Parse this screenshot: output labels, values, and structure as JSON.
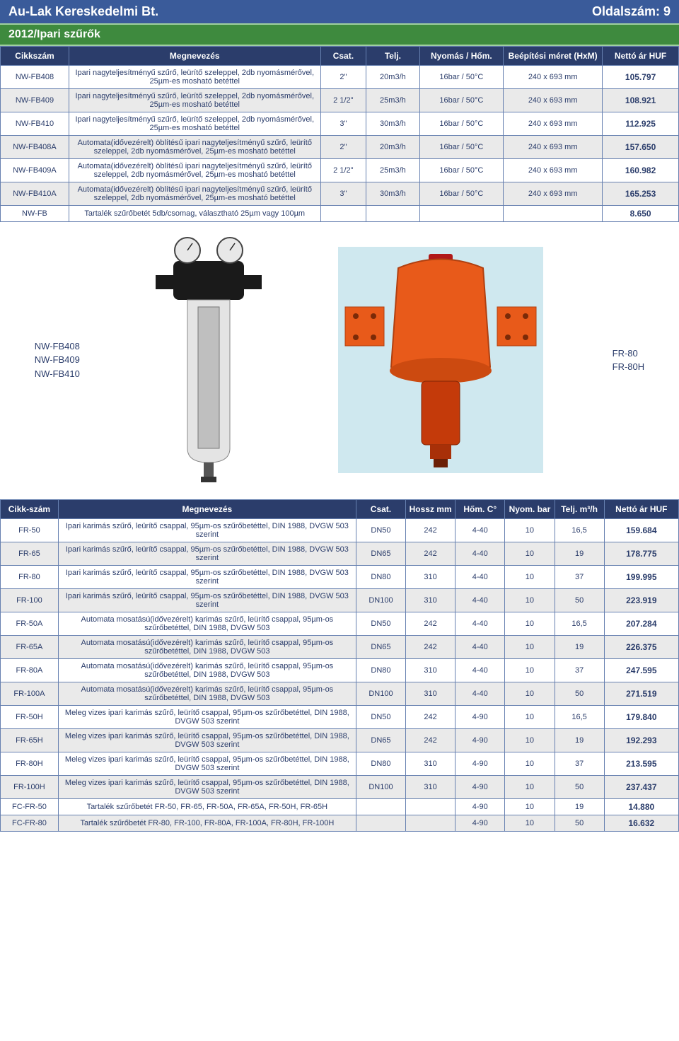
{
  "header": {
    "company": "Au-Lak Kereskedelmi Bt.",
    "page_label": "Oldalszám: 9",
    "subtitle": "2012/Ipari szűrők"
  },
  "colors": {
    "header_bg": "#3a5b9a",
    "subheader_bg": "#3e8a3e",
    "th_bg": "#2b3d6b",
    "border": "#6680b0",
    "row_alt": "#eaeaea",
    "text_blue": "#2b3d6b"
  },
  "table1": {
    "headers": {
      "code": "Cikkszám",
      "desc": "Megnevezés",
      "csat": "Csat.",
      "telj": "Telj.",
      "nyom": "Nyomás / Hőm.",
      "meret": "Beépítési méret (HxM)",
      "price": "Nettó ár HUF"
    },
    "rows": [
      {
        "code": "NW-FB408",
        "desc": "Ipari nagyteljesítményű szűrő, leürítő szeleppel, 2db nyomásmérővel, 25µm-es mosható betéttel",
        "csat": "2\"",
        "telj": "20m3/h",
        "nyom": "16bar / 50°C",
        "meret": "240 x 693 mm",
        "price": "105.797"
      },
      {
        "code": "NW-FB409",
        "desc": "Ipari nagyteljesítményű szűrő, leürítő szeleppel, 2db nyomásmérővel, 25µm-es mosható betéttel",
        "csat": "2 1/2\"",
        "telj": "25m3/h",
        "nyom": "16bar / 50°C",
        "meret": "240 x 693 mm",
        "price": "108.921"
      },
      {
        "code": "NW-FB410",
        "desc": "Ipari nagyteljesítményű szűrő, leürítő szeleppel, 2db nyomásmérővel, 25µm-es mosható betéttel",
        "csat": "3\"",
        "telj": "30m3/h",
        "nyom": "16bar / 50°C",
        "meret": "240 x 693 mm",
        "price": "112.925"
      },
      {
        "code": "NW-FB408A",
        "desc": "Automata(idővezérelt) öblítésű ipari nagyteljesítményű szűrő, leürítő szeleppel, 2db nyomásmérővel, 25µm-es mosható betéttel",
        "csat": "2\"",
        "telj": "20m3/h",
        "nyom": "16bar / 50°C",
        "meret": "240 x 693 mm",
        "price": "157.650"
      },
      {
        "code": "NW-FB409A",
        "desc": "Automata(idővezérelt) öblítésű ipari nagyteljesítményű szűrő, leürítő szeleppel, 2db nyomásmérővel, 25µm-es mosható betéttel",
        "csat": "2 1/2\"",
        "telj": "25m3/h",
        "nyom": "16bar / 50°C",
        "meret": "240 x 693 mm",
        "price": "160.982"
      },
      {
        "code": "NW-FB410A",
        "desc": "Automata(idővezérelt) öblítésű ipari nagyteljesítményű szűrő, leürítő szeleppel, 2db nyomásmérővel, 25µm-es mosható betéttel",
        "csat": "3\"",
        "telj": "30m3/h",
        "nyom": "16bar / 50°C",
        "meret": "240 x 693 mm",
        "price": "165.253"
      },
      {
        "code": "NW-FB",
        "desc": "Tartalék szűrőbetét 5db/csomag, választható 25µm vagy 100µm",
        "csat": "",
        "telj": "",
        "nyom": "",
        "meret": "",
        "price": "8.650"
      }
    ]
  },
  "images": {
    "left_labels": [
      "NW-FB408",
      "NW-FB409",
      "NW-FB410"
    ],
    "right_labels": [
      "FR-80",
      "FR-80H"
    ]
  },
  "table2": {
    "headers": {
      "code": "Cikk-szám",
      "desc": "Megnevezés",
      "csat": "Csat.",
      "hossz": "Hossz mm",
      "hom": "Hőm. C°",
      "nyom": "Nyom. bar",
      "telj": "Telj. m³/h",
      "price": "Nettó ár HUF"
    },
    "rows": [
      {
        "code": "FR-50",
        "desc": "Ipari karimás szűrő, leürítő csappal, 95µm-os szűrőbetéttel, DIN 1988, DVGW 503 szerint",
        "csat": "DN50",
        "hossz": "242",
        "hom": "4-40",
        "nyom": "10",
        "telj": "16,5",
        "price": "159.684"
      },
      {
        "code": "FR-65",
        "desc": "Ipari karimás szűrő, leürítő csappal, 95µm-os szűrőbetéttel, DIN 1988, DVGW 503 szerint",
        "csat": "DN65",
        "hossz": "242",
        "hom": "4-40",
        "nyom": "10",
        "telj": "19",
        "price": "178.775"
      },
      {
        "code": "FR-80",
        "desc": "Ipari karimás szűrő, leürítő csappal, 95µm-os szűrőbetéttel, DIN 1988, DVGW 503 szerint",
        "csat": "DN80",
        "hossz": "310",
        "hom": "4-40",
        "nyom": "10",
        "telj": "37",
        "price": "199.995"
      },
      {
        "code": "FR-100",
        "desc": "Ipari karimás szűrő, leürítő csappal, 95µm-os szűrőbetéttel, DIN 1988, DVGW 503 szerint",
        "csat": "DN100",
        "hossz": "310",
        "hom": "4-40",
        "nyom": "10",
        "telj": "50",
        "price": "223.919"
      },
      {
        "code": "FR-50A",
        "desc": "Automata mosatású(idővezérelt) karimás szűrő, leürítő csappal, 95µm-os szűrőbetéttel, DIN 1988, DVGW 503",
        "csat": "DN50",
        "hossz": "242",
        "hom": "4-40",
        "nyom": "10",
        "telj": "16,5",
        "price": "207.284"
      },
      {
        "code": "FR-65A",
        "desc": "Automata mosatású(idővezérelt) karimás szűrő, leürítő csappal, 95µm-os szűrőbetéttel, DIN 1988, DVGW 503",
        "csat": "DN65",
        "hossz": "242",
        "hom": "4-40",
        "nyom": "10",
        "telj": "19",
        "price": "226.375"
      },
      {
        "code": "FR-80A",
        "desc": "Automata mosatású(idővezérelt) karimás szűrő, leürítő csappal, 95µm-os szűrőbetéttel, DIN 1988, DVGW 503",
        "csat": "DN80",
        "hossz": "310",
        "hom": "4-40",
        "nyom": "10",
        "telj": "37",
        "price": "247.595"
      },
      {
        "code": "FR-100A",
        "desc": "Automata mosatású(idővezérelt) karimás szűrő, leürítő csappal, 95µm-os szűrőbetéttel, DIN 1988, DVGW 503",
        "csat": "DN100",
        "hossz": "310",
        "hom": "4-40",
        "nyom": "10",
        "telj": "50",
        "price": "271.519"
      },
      {
        "code": "FR-50H",
        "desc": "Meleg vizes ipari karimás szűrő, leürítő csappal, 95µm-os szűrőbetéttel, DIN 1988, DVGW 503 szerint",
        "csat": "DN50",
        "hossz": "242",
        "hom": "4-90",
        "nyom": "10",
        "telj": "16,5",
        "price": "179.840"
      },
      {
        "code": "FR-65H",
        "desc": "Meleg vizes ipari karimás szűrő, leürítő csappal, 95µm-os szűrőbetéttel, DIN 1988, DVGW 503 szerint",
        "csat": "DN65",
        "hossz": "242",
        "hom": "4-90",
        "nyom": "10",
        "telj": "19",
        "price": "192.293"
      },
      {
        "code": "FR-80H",
        "desc": "Meleg vizes ipari karimás szűrő, leürítő csappal, 95µm-os szűrőbetéttel, DIN 1988, DVGW 503 szerint",
        "csat": "DN80",
        "hossz": "310",
        "hom": "4-90",
        "nyom": "10",
        "telj": "37",
        "price": "213.595"
      },
      {
        "code": "FR-100H",
        "desc": "Meleg vizes ipari karimás szűrő, leürítő csappal, 95µm-os szűrőbetéttel, DIN 1988, DVGW 503 szerint",
        "csat": "DN100",
        "hossz": "310",
        "hom": "4-90",
        "nyom": "10",
        "telj": "50",
        "price": "237.437"
      },
      {
        "code": "FC-FR-50",
        "desc": "Tartalék szűrőbetét\nFR-50, FR-65, FR-50A, FR-65A, FR-50H, FR-65H",
        "csat": "",
        "hossz": "",
        "hom": "4-90",
        "nyom": "10",
        "telj": "19",
        "price": "14.880"
      },
      {
        "code": "FC-FR-80",
        "desc": "Tartalék szűrőbetét\nFR-80, FR-100, FR-80A, FR-100A, FR-80H, FR-100H",
        "csat": "",
        "hossz": "",
        "hom": "4-90",
        "nyom": "10",
        "telj": "50",
        "price": "16.632"
      }
    ]
  }
}
